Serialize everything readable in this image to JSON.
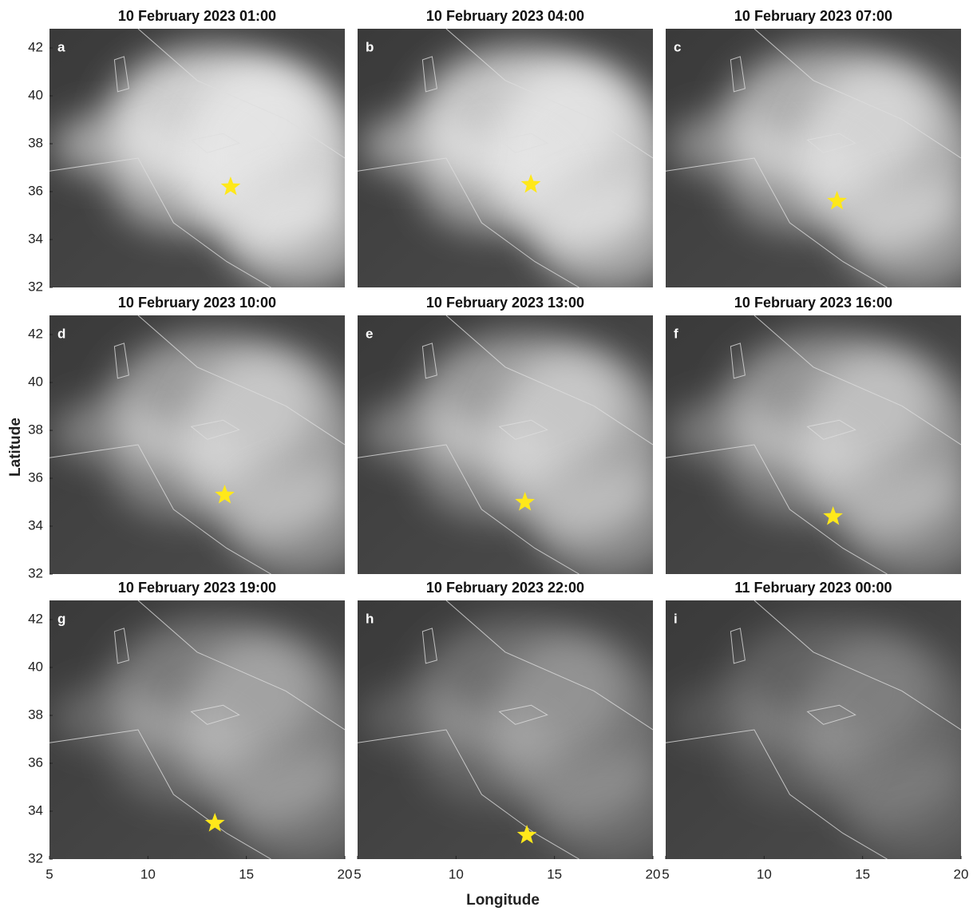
{
  "ylabel": "Latitude",
  "xlabel": "Longitude",
  "chart_data": [
    {
      "type": "scatter",
      "title": "10 February 2023 01:00",
      "annotation": "a",
      "x": [
        14.2
      ],
      "values": [
        36.2
      ],
      "color": "#ffe81a",
      "xlim": [
        5,
        20
      ],
      "ylim": [
        32,
        42.8
      ],
      "yticks": [
        32,
        34,
        36,
        38,
        40,
        42
      ]
    },
    {
      "type": "scatter",
      "title": "10 February 2023 04:00",
      "annotation": "b",
      "x": [
        13.8
      ],
      "values": [
        36.3
      ],
      "color": "#ffe81a",
      "xlim": [
        5,
        20
      ],
      "ylim": [
        32,
        42.8
      ]
    },
    {
      "type": "scatter",
      "title": "10 February 2023 07:00",
      "annotation": "c",
      "x": [
        13.7
      ],
      "values": [
        35.6
      ],
      "color": "#ffe81a",
      "xlim": [
        5,
        20
      ],
      "ylim": [
        32,
        42.8
      ]
    },
    {
      "type": "scatter",
      "title": "10 February 2023 10:00",
      "annotation": "d",
      "x": [
        13.9
      ],
      "values": [
        35.3
      ],
      "color": "#ffe81a",
      "xlim": [
        5,
        20
      ],
      "ylim": [
        32,
        42.8
      ],
      "yticks": [
        32,
        34,
        36,
        38,
        40,
        42
      ]
    },
    {
      "type": "scatter",
      "title": "10 February 2023 13:00",
      "annotation": "e",
      "x": [
        13.5
      ],
      "values": [
        35.0
      ],
      "color": "#ffe81a",
      "xlim": [
        5,
        20
      ],
      "ylim": [
        32,
        42.8
      ]
    },
    {
      "type": "scatter",
      "title": "10 February 2023 16:00",
      "annotation": "f",
      "x": [
        13.5
      ],
      "values": [
        34.4
      ],
      "color": "#ffe81a",
      "xlim": [
        5,
        20
      ],
      "ylim": [
        32,
        42.8
      ]
    },
    {
      "type": "scatter",
      "title": "10 February 2023 19:00",
      "annotation": "g",
      "x": [
        13.4
      ],
      "values": [
        33.5
      ],
      "color": "#ffe81a",
      "xlim": [
        5,
        20
      ],
      "ylim": [
        32,
        42.8
      ],
      "yticks": [
        32,
        34,
        36,
        38,
        40,
        42
      ],
      "xticks": [
        5,
        10,
        15,
        20
      ]
    },
    {
      "type": "scatter",
      "title": "10 February 2023 22:00",
      "annotation": "h",
      "x": [
        13.6
      ],
      "values": [
        33.0
      ],
      "color": "#ffe81a",
      "xlim": [
        5,
        20
      ],
      "ylim": [
        32,
        42.8
      ],
      "xticks": [
        5,
        10,
        15,
        20
      ]
    },
    {
      "type": "scatter",
      "title": "11 February 2023 00:00",
      "annotation": "i",
      "x": [],
      "values": [],
      "color": "#ffe81a",
      "xlim": [
        5,
        20
      ],
      "ylim": [
        32,
        42.8
      ],
      "xticks": [
        5,
        10,
        15,
        20
      ]
    }
  ]
}
